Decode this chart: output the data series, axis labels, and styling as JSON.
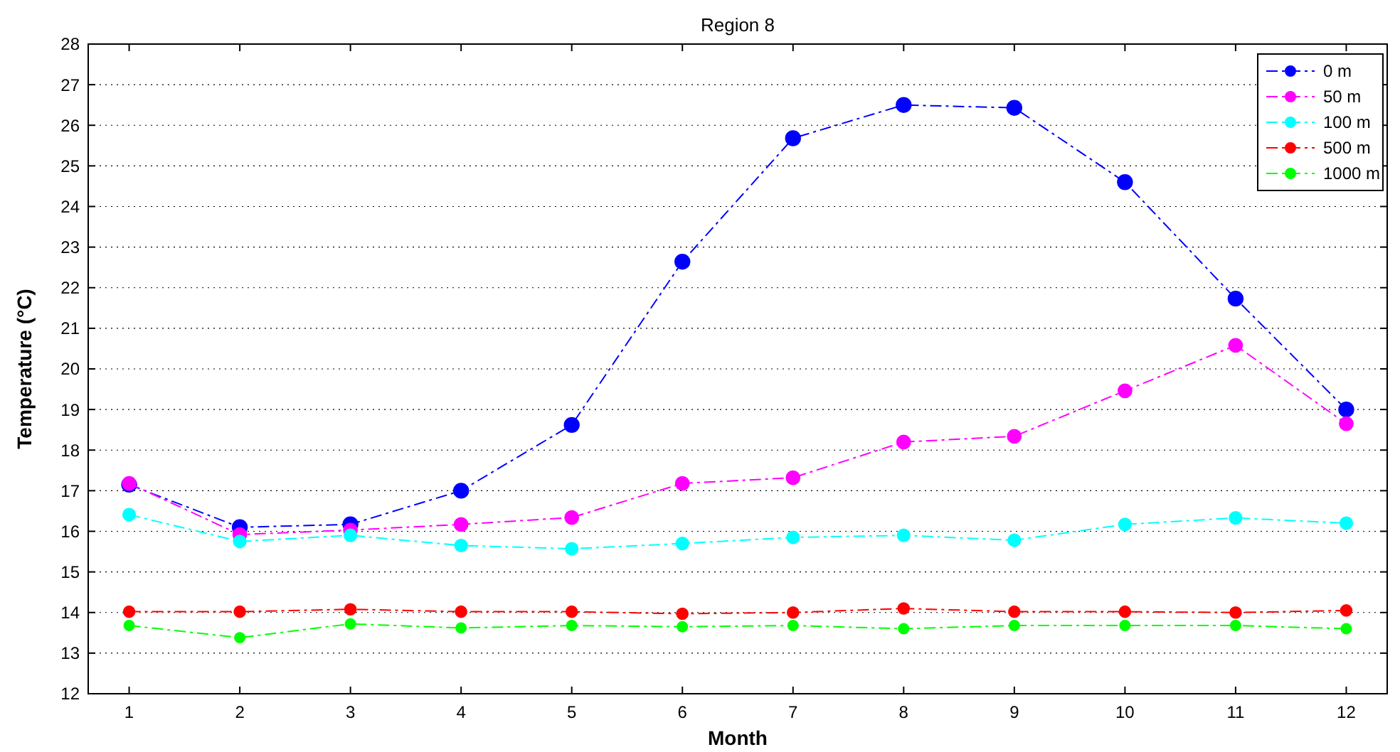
{
  "chart_data": {
    "type": "line",
    "title": "Region 8",
    "xlabel": "Month",
    "ylabel": "Temperature (°C)",
    "categories": [
      "1",
      "2",
      "3",
      "4",
      "5",
      "6",
      "7",
      "8",
      "9",
      "10",
      "11",
      "12"
    ],
    "series": [
      {
        "name": "0 m",
        "color": "#0000ff",
        "values": [
          17.15,
          16.1,
          16.17,
          17.0,
          18.62,
          22.64,
          25.68,
          26.5,
          26.43,
          24.6,
          21.73,
          19.0
        ]
      },
      {
        "name": "50 m",
        "color": "#ff00ff",
        "values": [
          17.18,
          15.92,
          16.03,
          16.17,
          16.34,
          17.18,
          17.32,
          18.2,
          18.34,
          19.46,
          20.58,
          18.65
        ]
      },
      {
        "name": "100 m",
        "color": "#00ffff",
        "values": [
          16.41,
          15.75,
          15.9,
          15.65,
          15.57,
          15.7,
          15.85,
          15.9,
          15.78,
          16.17,
          16.33,
          16.2
        ]
      },
      {
        "name": "500 m",
        "color": "#ff0000",
        "values": [
          14.02,
          14.02,
          14.08,
          14.02,
          14.02,
          13.97,
          14.0,
          14.1,
          14.02,
          14.02,
          14.0,
          14.05
        ]
      },
      {
        "name": "1000 m",
        "color": "#00ff00",
        "values": [
          13.68,
          13.38,
          13.72,
          13.62,
          13.68,
          13.65,
          13.68,
          13.6,
          13.68,
          13.68,
          13.68,
          13.6
        ]
      }
    ],
    "ylim": [
      12,
      28
    ],
    "yticks": [
      12,
      13,
      14,
      15,
      16,
      17,
      18,
      19,
      20,
      21,
      22,
      23,
      24,
      25,
      26,
      27,
      28
    ],
    "grid": "y",
    "legend": "top right",
    "marker": "circle",
    "line_style": "dashed"
  }
}
